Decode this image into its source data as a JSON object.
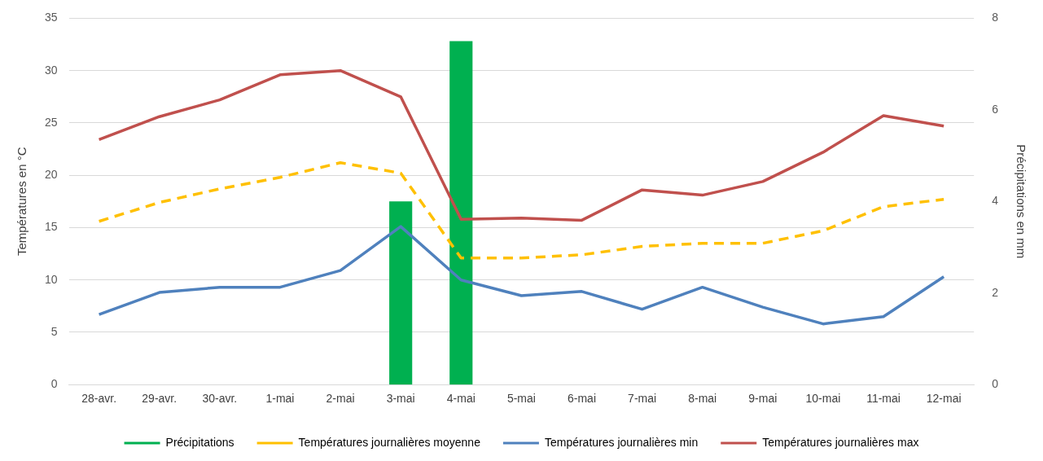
{
  "chart_data": {
    "type": "line",
    "xlabel": null,
    "ylabel": "Températures en °C",
    "y2label": "Précipitations en mm",
    "categories": [
      "28-avr.",
      "29-avr.",
      "30-avr.",
      "1-mai",
      "2-mai",
      "3-mai",
      "4-mai",
      "5-mai",
      "6-mai",
      "7-mai",
      "8-mai",
      "9-mai",
      "10-mai",
      "11-mai",
      "12-mai"
    ],
    "series": [
      {
        "name": "Précipitations",
        "type": "bar",
        "axis": "y2",
        "color": "#00b050",
        "values": [
          null,
          null,
          null,
          null,
          null,
          4.0,
          7.5,
          null,
          null,
          null,
          null,
          null,
          null,
          null,
          null
        ]
      },
      {
        "name": "Températures journalières moyenne",
        "line_style": "dashed",
        "color": "#ffc000",
        "values": [
          15.6,
          17.4,
          18.7,
          19.8,
          21.2,
          20.2,
          12.1,
          12.1,
          12.4,
          13.2,
          13.5,
          13.5,
          14.7,
          17.0,
          17.7
        ]
      },
      {
        "name": "Températures journalières min",
        "line_style": "solid",
        "color": "#4f81bd",
        "values": [
          6.7,
          8.8,
          9.3,
          9.3,
          10.9,
          15.1,
          10.0,
          8.5,
          8.9,
          7.2,
          9.3,
          7.4,
          5.8,
          6.5,
          10.3
        ]
      },
      {
        "name": "Températures journalières max",
        "line_style": "solid",
        "color": "#c0504d",
        "values": [
          23.4,
          25.6,
          27.2,
          29.6,
          30.0,
          27.5,
          15.8,
          15.9,
          15.7,
          18.6,
          18.1,
          19.4,
          22.2,
          25.7,
          24.7
        ]
      }
    ],
    "ylim": [
      0,
      35
    ],
    "yticks": [
      0,
      5,
      10,
      15,
      20,
      25,
      30,
      35
    ],
    "y2lim": [
      0,
      8
    ],
    "y2ticks": [
      0,
      2,
      4,
      6,
      8
    ],
    "grid": "y",
    "legend": "bottom",
    "marker": "none"
  }
}
